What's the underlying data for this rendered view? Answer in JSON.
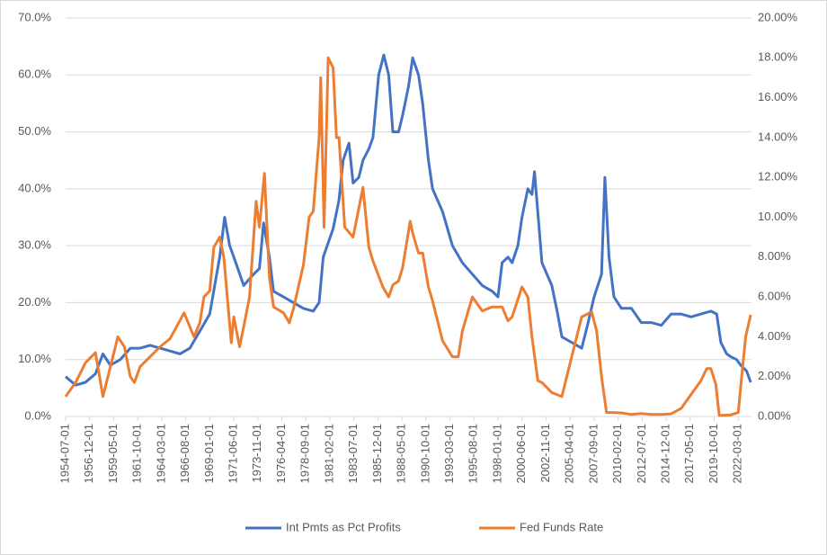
{
  "chart_data": {
    "type": "line",
    "xlim": [
      "1954-07-01",
      "2023-07-01"
    ],
    "xticks": [
      "1954-07-01",
      "1956-12-01",
      "1959-05-01",
      "1961-10-01",
      "1964-03-01",
      "1966-08-01",
      "1969-01-01",
      "1971-06-01",
      "1973-11-01",
      "1976-04-01",
      "1978-09-01",
      "1981-02-01",
      "1983-07-01",
      "1985-12-01",
      "1988-05-01",
      "1990-10-01",
      "1993-03-01",
      "1995-08-01",
      "1998-01-01",
      "2000-06-01",
      "2002-11-01",
      "2005-04-01",
      "2007-09-01",
      "2010-02-01",
      "2012-07-01",
      "2014-12-01",
      "2017-05-01",
      "2019-10-01",
      "2022-03-01"
    ],
    "ylim": [
      0,
      70
    ],
    "yticks": [
      {
        "value": 0,
        "label": "0.0%"
      },
      {
        "value": 10,
        "label": "10.0%"
      },
      {
        "value": 20,
        "label": "20.0%"
      },
      {
        "value": 30,
        "label": "30.0%"
      },
      {
        "value": 40,
        "label": "40.0%"
      },
      {
        "value": 50,
        "label": "50.0%"
      },
      {
        "value": 60,
        "label": "60.0%"
      },
      {
        "value": 70,
        "label": "70.0%"
      }
    ],
    "y2lim": [
      0,
      20
    ],
    "y2ticks": [
      {
        "value": 0,
        "label": "0.00%"
      },
      {
        "value": 2,
        "label": "2.00%"
      },
      {
        "value": 4,
        "label": "4.00%"
      },
      {
        "value": 6,
        "label": "6.00%"
      },
      {
        "value": 8,
        "label": "8.00%"
      },
      {
        "value": 10,
        "label": "10.00%"
      },
      {
        "value": 12,
        "label": "12.00%"
      },
      {
        "value": 14,
        "label": "14.00%"
      },
      {
        "value": 16,
        "label": "16.00%"
      },
      {
        "value": 18,
        "label": "18.00%"
      },
      {
        "value": 20,
        "label": "20.00%"
      }
    ],
    "grid": true,
    "legend": "bottom",
    "series": [
      {
        "name": "Int Pmts as Pct Profits",
        "color": "#4472c4",
        "x": [
          "1954-07-01",
          "1955-07-01",
          "1956-07-01",
          "1957-07-01",
          "1958-04-01",
          "1959-01-01",
          "1960-01-01",
          "1961-01-01",
          "1962-01-01",
          "1963-01-01",
          "1964-01-01",
          "1965-01-01",
          "1966-01-01",
          "1967-01-01",
          "1968-01-01",
          "1969-01-01",
          "1970-01-01",
          "1970-07-01",
          "1971-01-01",
          "1971-06-01",
          "1972-06-01",
          "1973-06-01",
          "1974-01-01",
          "1974-06-01",
          "1975-01-01",
          "1975-06-01",
          "1976-06-01",
          "1977-06-01",
          "1978-06-01",
          "1979-06-01",
          "1980-01-01",
          "1980-06-01",
          "1981-06-01",
          "1982-01-01",
          "1982-06-01",
          "1983-01-01",
          "1983-06-01",
          "1984-01-01",
          "1984-06-01",
          "1985-01-01",
          "1985-06-01",
          "1986-01-01",
          "1986-07-01",
          "1987-01-01",
          "1987-06-01",
          "1988-01-01",
          "1988-06-01",
          "1989-01-01",
          "1989-06-01",
          "1990-01-01",
          "1990-06-01",
          "1991-01-01",
          "1991-06-01",
          "1992-06-01",
          "1993-06-01",
          "1994-06-01",
          "1995-06-01",
          "1996-06-01",
          "1997-06-01",
          "1998-01-01",
          "1998-06-01",
          "1999-01-01",
          "1999-06-01",
          "2000-01-01",
          "2000-06-01",
          "2001-01-01",
          "2001-06-01",
          "2001-09-01",
          "2002-06-01",
          "2003-06-01",
          "2004-01-01",
          "2004-06-01",
          "2005-06-01",
          "2006-06-01",
          "2007-01-01",
          "2007-09-01",
          "2008-06-01",
          "2008-10-01",
          "2009-03-01",
          "2009-09-01",
          "2010-06-01",
          "2011-06-01",
          "2012-06-01",
          "2013-06-01",
          "2014-06-01",
          "2015-06-01",
          "2016-06-01",
          "2017-06-01",
          "2018-06-01",
          "2019-06-01",
          "2020-01-01",
          "2020-06-01",
          "2021-01-01",
          "2021-06-01",
          "2022-01-01",
          "2022-06-01",
          "2023-01-01",
          "2023-06-01"
        ],
        "values": [
          7,
          5.5,
          6,
          7.5,
          11,
          9,
          10,
          12,
          12,
          12.5,
          12,
          11.5,
          11,
          12,
          15,
          18,
          28,
          35,
          30,
          28,
          23,
          25,
          26,
          34,
          28,
          22,
          21,
          20,
          19,
          18.5,
          20,
          28,
          33,
          38,
          45,
          48,
          41,
          42,
          45,
          47,
          49,
          60,
          63.5,
          60,
          50,
          50,
          53,
          58,
          63,
          60,
          55,
          45,
          40,
          36,
          30,
          27,
          25,
          23,
          22,
          21,
          27,
          28,
          27,
          30,
          35,
          40,
          39,
          43,
          27,
          23,
          18,
          14,
          13,
          12,
          16,
          21,
          25,
          42,
          28,
          21,
          19,
          19,
          16.5,
          16.5,
          16,
          18,
          18,
          17.5,
          18,
          18.5,
          18,
          13,
          11,
          10.5,
          10,
          9,
          8,
          6
        ]
      },
      {
        "name": "Fed Funds Rate",
        "color": "#ed7d31",
        "axis": "y2",
        "x": [
          "1954-07-01",
          "1955-07-01",
          "1956-07-01",
          "1957-07-01",
          "1958-04-01",
          "1959-01-01",
          "1959-10-01",
          "1960-06-01",
          "1961-01-01",
          "1961-06-01",
          "1962-01-01",
          "1963-01-01",
          "1964-01-01",
          "1965-01-01",
          "1966-06-01",
          "1967-01-01",
          "1967-06-01",
          "1968-01-01",
          "1968-06-01",
          "1969-01-01",
          "1969-06-01",
          "1970-01-01",
          "1970-06-01",
          "1971-03-01",
          "1971-06-01",
          "1972-01-01",
          "1972-06-01",
          "1973-01-01",
          "1973-06-01",
          "1973-09-01",
          "1974-01-01",
          "1974-07-01",
          "1975-01-01",
          "1975-06-01",
          "1976-06-01",
          "1977-01-01",
          "1977-06-01",
          "1978-06-01",
          "1979-01-01",
          "1979-06-01",
          "1980-01-01",
          "1980-03-01",
          "1980-07-01",
          "1980-12-01",
          "1981-06-01",
          "1981-10-01",
          "1982-01-01",
          "1982-08-01",
          "1983-06-01",
          "1984-06-01",
          "1985-01-01",
          "1985-06-01",
          "1986-06-01",
          "1987-01-01",
          "1987-06-01",
          "1988-01-01",
          "1988-06-01",
          "1989-03-01",
          "1989-06-01",
          "1990-01-01",
          "1990-06-01",
          "1991-01-01",
          "1991-06-01",
          "1992-06-01",
          "1993-06-01",
          "1994-01-01",
          "1994-06-01",
          "1995-06-01",
          "1996-06-01",
          "1997-06-01",
          "1998-06-01",
          "1999-01-01",
          "1999-06-01",
          "2000-06-01",
          "2001-01-01",
          "2001-06-01",
          "2002-01-01",
          "2002-06-01",
          "2003-06-01",
          "2004-06-01",
          "2005-06-01",
          "2006-06-01",
          "2007-06-01",
          "2007-12-01",
          "2008-06-01",
          "2008-12-01",
          "2009-06-01",
          "2010-06-01",
          "2011-06-01",
          "2012-06-01",
          "2013-06-01",
          "2014-06-01",
          "2015-06-01",
          "2016-06-01",
          "2017-06-01",
          "2018-06-01",
          "2019-01-01",
          "2019-06-01",
          "2019-12-01",
          "2020-04-01",
          "2021-06-01",
          "2022-03-01",
          "2022-06-01",
          "2022-12-01",
          "2023-06-01"
        ],
        "values": [
          1,
          1.7,
          2.7,
          3.2,
          1,
          2.5,
          4,
          3.5,
          2,
          1.7,
          2.5,
          3,
          3.5,
          3.9,
          5.2,
          4.5,
          4,
          4.7,
          6,
          6.3,
          8.5,
          9,
          8,
          3.7,
          5,
          3.5,
          4.5,
          6,
          9,
          10.8,
          9.5,
          12.2,
          7,
          5.5,
          5.2,
          4.7,
          5.4,
          7.6,
          10,
          10.3,
          14,
          17,
          9.5,
          18,
          17.5,
          14,
          14,
          9.5,
          9,
          11.5,
          8.5,
          7.8,
          6.5,
          6,
          6.6,
          6.8,
          7.5,
          9.8,
          9.2,
          8.2,
          8.2,
          6.5,
          5.8,
          3.8,
          3,
          3,
          4.3,
          6,
          5.3,
          5.5,
          5.5,
          4.8,
          5,
          6.5,
          6,
          4,
          1.8,
          1.7,
          1.2,
          1,
          3,
          5,
          5.25,
          4.3,
          2,
          0.2,
          0.2,
          0.18,
          0.1,
          0.15,
          0.1,
          0.1,
          0.13,
          0.4,
          1.1,
          1.8,
          2.4,
          2.4,
          1.6,
          0.05,
          0.08,
          0.2,
          1.5,
          4,
          5.1
        ]
      }
    ]
  }
}
